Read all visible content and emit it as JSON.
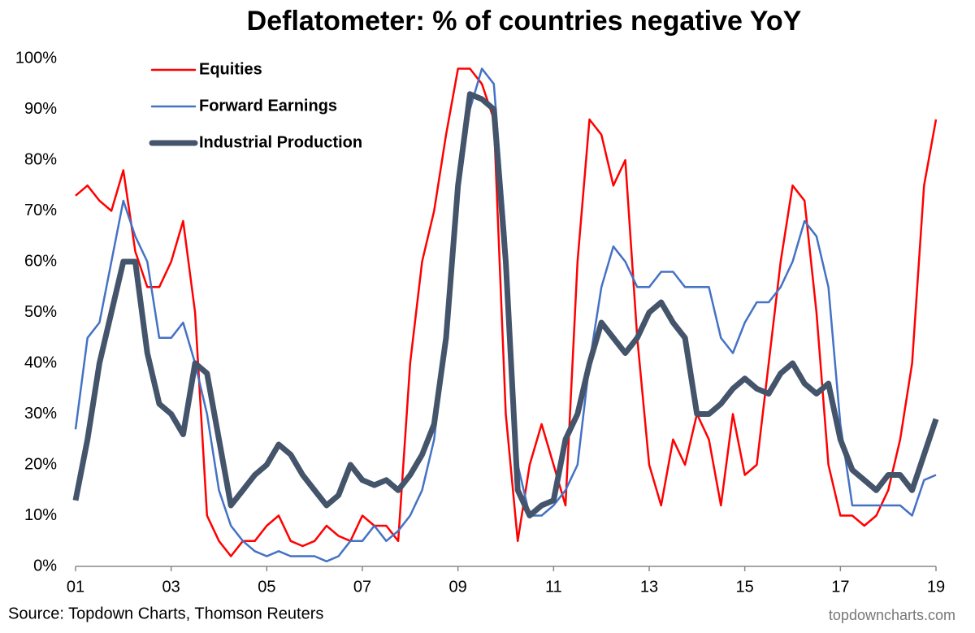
{
  "chart_data": {
    "type": "line",
    "title": "Deflatometer: % of countries negative YoY",
    "source": "Source: Topdown Charts, Thomson Reuters",
    "watermark": "topdowncharts.com",
    "x": [
      2001,
      2001.25,
      2001.5,
      2001.75,
      2002,
      2002.25,
      2002.5,
      2002.75,
      2003,
      2003.25,
      2003.5,
      2003.75,
      2004,
      2004.25,
      2004.5,
      2004.75,
      2005,
      2005.25,
      2005.5,
      2005.75,
      2006,
      2006.25,
      2006.5,
      2006.75,
      2007,
      2007.25,
      2007.5,
      2007.75,
      2008,
      2008.25,
      2008.5,
      2008.75,
      2009,
      2009.25,
      2009.5,
      2009.75,
      2010,
      2010.25,
      2010.5,
      2010.75,
      2011,
      2011.25,
      2011.5,
      2011.75,
      2012,
      2012.25,
      2012.5,
      2012.75,
      2013,
      2013.25,
      2013.5,
      2013.75,
      2014,
      2014.25,
      2014.5,
      2014.75,
      2015,
      2015.25,
      2015.5,
      2015.75,
      2016,
      2016.25,
      2016.5,
      2016.75,
      2017,
      2017.25,
      2017.5,
      2017.75,
      2018,
      2018.25,
      2018.5,
      2018.75,
      2019
    ],
    "series": [
      {
        "name": "Equities",
        "color": "#ff0000",
        "width": 2.5,
        "values": [
          73,
          75,
          72,
          70,
          78,
          62,
          55,
          55,
          60,
          68,
          50,
          10,
          5,
          2,
          5,
          5,
          8,
          10,
          5,
          4,
          5,
          8,
          6,
          5,
          10,
          8,
          8,
          5,
          40,
          60,
          70,
          85,
          98,
          98,
          95,
          88,
          30,
          5,
          20,
          28,
          20,
          12,
          60,
          88,
          85,
          75,
          80,
          45,
          20,
          12,
          25,
          20,
          30,
          25,
          12,
          30,
          18,
          20,
          40,
          60,
          75,
          72,
          50,
          20,
          10,
          10,
          8,
          10,
          15,
          25,
          40,
          75,
          88
        ]
      },
      {
        "name": "Forward Earnings",
        "color": "#4472c4",
        "width": 2.5,
        "values": [
          27,
          45,
          48,
          60,
          72,
          65,
          60,
          45,
          45,
          48,
          40,
          30,
          15,
          8,
          5,
          3,
          2,
          3,
          2,
          2,
          2,
          1,
          2,
          5,
          5,
          8,
          5,
          7,
          10,
          15,
          25,
          45,
          75,
          90,
          98,
          95,
          65,
          20,
          10,
          10,
          12,
          15,
          20,
          40,
          55,
          63,
          60,
          55,
          55,
          58,
          58,
          55,
          55,
          55,
          45,
          42,
          48,
          52,
          52,
          55,
          60,
          68,
          65,
          55,
          28,
          12,
          12,
          12,
          12,
          12,
          10,
          17,
          18
        ]
      },
      {
        "name": "Industrial Production",
        "color": "#44546a",
        "width": 7,
        "values": [
          13,
          25,
          40,
          50,
          60,
          60,
          42,
          32,
          30,
          26,
          40,
          38,
          25,
          12,
          15,
          18,
          20,
          24,
          22,
          18,
          15,
          12,
          14,
          20,
          17,
          16,
          17,
          15,
          18,
          22,
          28,
          45,
          75,
          93,
          92,
          90,
          60,
          15,
          10,
          12,
          13,
          25,
          30,
          40,
          48,
          45,
          42,
          45,
          50,
          52,
          48,
          45,
          30,
          30,
          32,
          35,
          37,
          35,
          34,
          38,
          40,
          36,
          34,
          36,
          25,
          19,
          17,
          15,
          18,
          18,
          15,
          22,
          29
        ]
      }
    ],
    "xlim": [
      2001,
      2019
    ],
    "xticks": [
      {
        "value": 2001,
        "label": "01"
      },
      {
        "value": 2003,
        "label": "03"
      },
      {
        "value": 2005,
        "label": "05"
      },
      {
        "value": 2007,
        "label": "07"
      },
      {
        "value": 2009,
        "label": "09"
      },
      {
        "value": 2011,
        "label": "11"
      },
      {
        "value": 2013,
        "label": "13"
      },
      {
        "value": 2015,
        "label": "15"
      },
      {
        "value": 2017,
        "label": "17"
      },
      {
        "value": 2019,
        "label": "19"
      }
    ],
    "ylim": [
      0,
      100
    ],
    "yticks": [
      {
        "value": 0,
        "label": "0%"
      },
      {
        "value": 10,
        "label": "10%"
      },
      {
        "value": 20,
        "label": "20%"
      },
      {
        "value": 30,
        "label": "30%"
      },
      {
        "value": 40,
        "label": "40%"
      },
      {
        "value": 50,
        "label": "50%"
      },
      {
        "value": 60,
        "label": "60%"
      },
      {
        "value": 70,
        "label": "70%"
      },
      {
        "value": 80,
        "label": "80%"
      },
      {
        "value": 90,
        "label": "90%"
      },
      {
        "value": 100,
        "label": "100%"
      }
    ],
    "legend": "top-left"
  }
}
